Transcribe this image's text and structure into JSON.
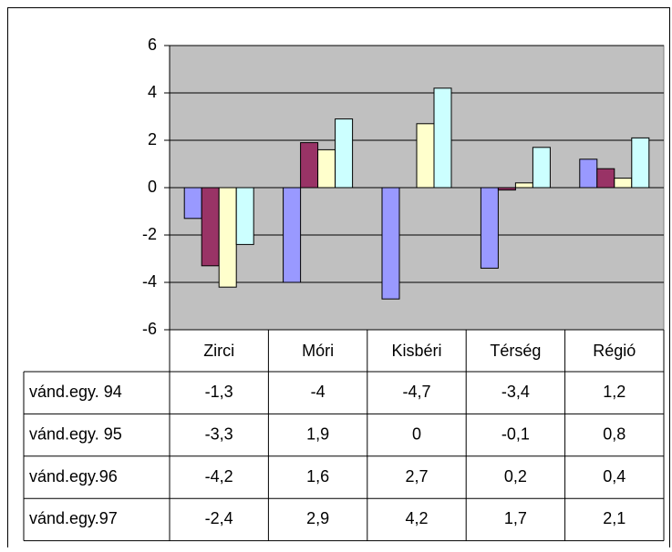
{
  "chart_data": {
    "type": "bar",
    "categories": [
      "Zirci",
      "Móri",
      "Kisbéri",
      "Térség",
      "Régió"
    ],
    "series": [
      {
        "name": "vánd.egy. 94",
        "color": "#9999ff",
        "values": [
          -1.3,
          -4,
          -4.7,
          -3.4,
          1.2
        ],
        "value_labels": [
          "-1,3",
          "-4",
          "-4,7",
          "-3,4",
          "1,2"
        ]
      },
      {
        "name": "vánd.egy. 95",
        "color": "#993366",
        "values": [
          -3.3,
          1.9,
          0,
          -0.1,
          0.8
        ],
        "value_labels": [
          "-3,3",
          "1,9",
          "0",
          "-0,1",
          "0,8"
        ]
      },
      {
        "name": "vánd.egy.96",
        "color": "#ffffcc",
        "values": [
          -4.2,
          1.6,
          2.7,
          0.2,
          0.4
        ],
        "value_labels": [
          "-4,2",
          "1,6",
          "2,7",
          "0,2",
          "0,4"
        ]
      },
      {
        "name": "vánd.egy.97",
        "color": "#ccffff",
        "values": [
          -2.4,
          2.9,
          4.2,
          1.7,
          2.1
        ],
        "value_labels": [
          "-2,4",
          "2,9",
          "4,2",
          "1,7",
          "2,1"
        ]
      }
    ],
    "ylim": [
      -6,
      6
    ],
    "yticks": [
      -6,
      -4,
      -2,
      0,
      2,
      4,
      6
    ],
    "grid": true,
    "plot_background": "#c0c0c0"
  }
}
